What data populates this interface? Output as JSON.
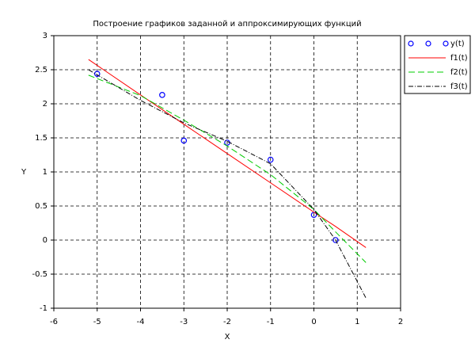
{
  "chart_data": {
    "type": "line",
    "title": "Построение графиков заданной и аппроксимирующих функций",
    "xlabel": "X",
    "ylabel": "Y",
    "xlim": [
      -6,
      2
    ],
    "ylim": [
      -1,
      3
    ],
    "xticks": [
      -6,
      -5,
      -4,
      -3,
      -2,
      -1,
      0,
      1,
      2
    ],
    "yticks": [
      -1,
      -0.5,
      0,
      0.5,
      1,
      1.5,
      2,
      2.5,
      3
    ],
    "grid": true,
    "legend": "outside-right",
    "series": [
      {
        "name": "y(t)",
        "type": "scatter",
        "color": "#0000ff",
        "x": [
          -5,
          -3.5,
          -3,
          -2,
          -1,
          0,
          0.5
        ],
        "values": [
          2.44,
          2.13,
          1.46,
          1.43,
          1.18,
          0.37,
          0.0
        ]
      },
      {
        "name": "f1(t)",
        "type": "line",
        "dash": "solid",
        "color": "#ff0000",
        "x": [
          -5.2,
          -4,
          -3,
          -2,
          -1,
          0,
          0.5,
          1.2
        ],
        "values": [
          2.65,
          2.13,
          1.7,
          1.27,
          0.84,
          0.41,
          0.2,
          -0.11
        ]
      },
      {
        "name": "f2(t)",
        "type": "line",
        "dash": "dashed",
        "color": "#00cc00",
        "x": [
          -5.2,
          -4,
          -3,
          -2,
          -1,
          0,
          0.5,
          1.2
        ],
        "values": [
          2.42,
          2.12,
          1.76,
          1.38,
          0.96,
          0.45,
          0.12,
          -0.33
        ]
      },
      {
        "name": "f3(t)",
        "type": "line",
        "dash": "dashdot",
        "color": "#000000",
        "x": [
          -5.2,
          -4,
          -3,
          -2,
          -1,
          0,
          0.5,
          1.2
        ],
        "values": [
          2.5,
          2.05,
          1.72,
          1.45,
          1.12,
          0.45,
          0.0,
          -0.85
        ]
      }
    ]
  }
}
